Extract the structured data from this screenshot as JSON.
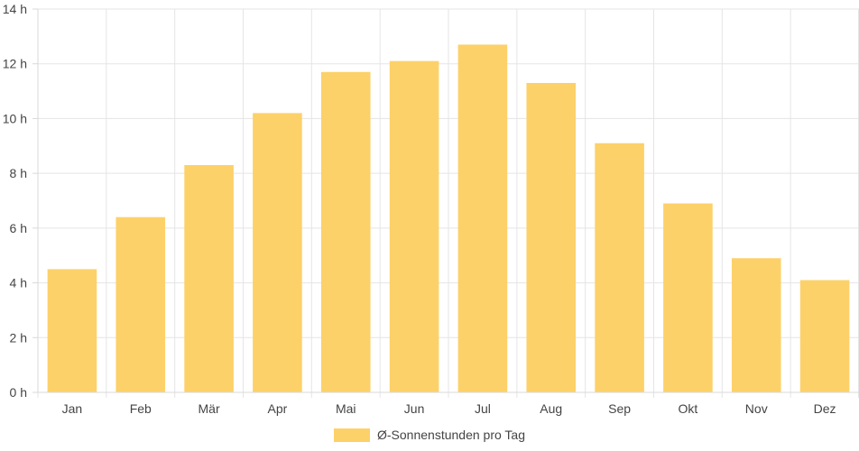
{
  "chart_data": {
    "type": "bar",
    "categories": [
      "Jan",
      "Feb",
      "Mär",
      "Apr",
      "Mai",
      "Jun",
      "Jul",
      "Aug",
      "Sep",
      "Okt",
      "Nov",
      "Dez"
    ],
    "series": [
      {
        "name": "Ø-Sonnenstunden pro Tag",
        "values": [
          4.5,
          6.4,
          8.3,
          10.2,
          11.7,
          12.1,
          12.7,
          11.3,
          9.1,
          6.9,
          4.9,
          4.1
        ],
        "color": "#fdd169"
      }
    ],
    "ylim": [
      0,
      14
    ],
    "y_ticks": [
      0,
      2,
      4,
      6,
      8,
      10,
      12,
      14
    ],
    "y_tick_suffix": " h",
    "grid": true,
    "legend_position": "bottom"
  }
}
